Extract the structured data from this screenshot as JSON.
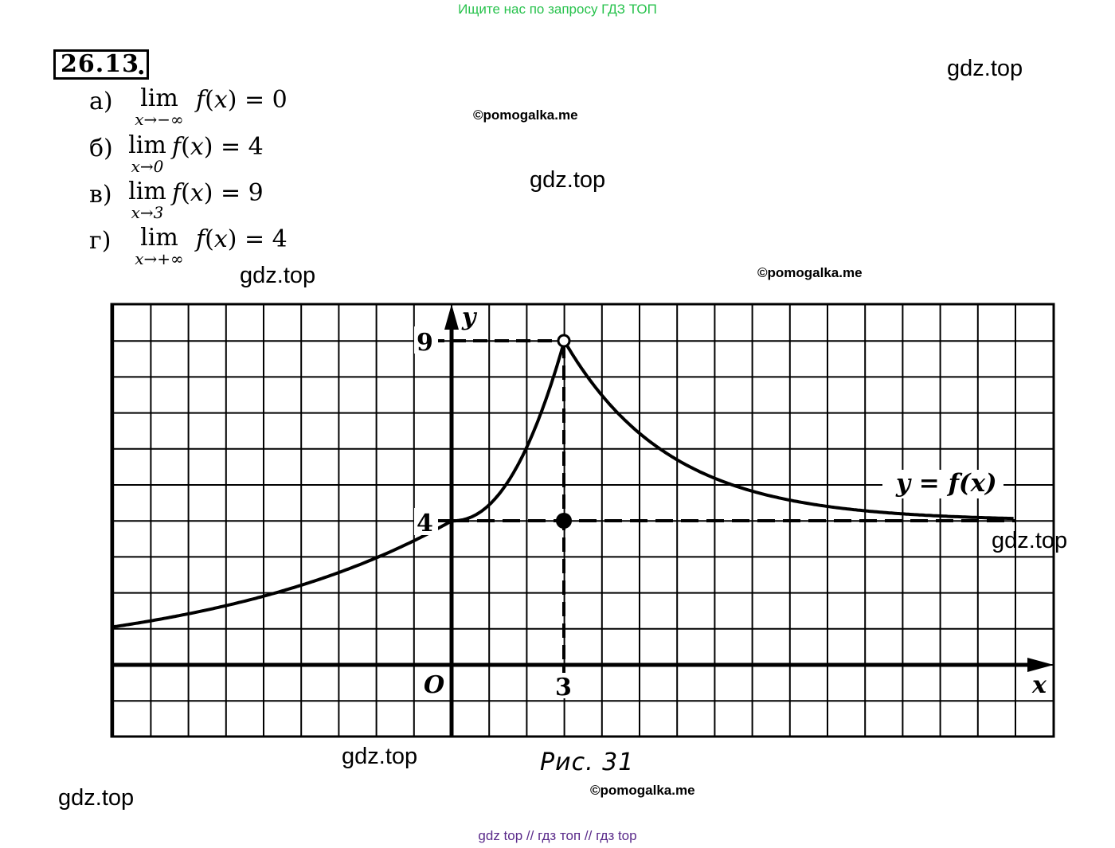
{
  "banner": "Ищите нас по запросу ГДЗ ТОП",
  "problem": {
    "number": "26.13",
    "dot": ".",
    "items": [
      {
        "label": "а)",
        "word": "lim",
        "sub": "x→−∞",
        "fn": "f",
        "arg": "x",
        "rhs": "= 0"
      },
      {
        "label": "б)",
        "word": "lim",
        "sub": "x→0",
        "fn": "f",
        "arg": "x",
        "rhs": "= 4"
      },
      {
        "label": "в)",
        "word": "lim",
        "sub": "x→3",
        "fn": "f",
        "arg": "x",
        "rhs": "= 9"
      },
      {
        "label": "г)",
        "word": "lim",
        "sub": "x→+∞",
        "fn": "f",
        "arg": "x",
        "rhs": "= 4"
      }
    ]
  },
  "watermarks": {
    "gdz_1": "gdz.top",
    "gdz_2": "gdz.top",
    "gdz_3": "gdz.top",
    "gdz_4": "gdz.top",
    "gdz_5": "gdz.top",
    "gdz_6": "gdz.top",
    "copy_1": "©pomogalka.me",
    "copy_2": "©pomogalka.me",
    "copy_3": "©pomogalka.me"
  },
  "figure": {
    "y_axis_label": "y",
    "x_axis_label": "x",
    "origin_label": "O",
    "tick_y_9": "9",
    "tick_y_4": "4",
    "tick_x_3": "3",
    "curve_label": "y = f(x)",
    "open_point": {
      "x": 3,
      "y": 9
    },
    "filled_point": {
      "x": 3,
      "y": 4
    },
    "asymptote_y": 4,
    "caption": "Рис. 31"
  },
  "footer": "gdz top  //  гдз топ  //  гдз top"
}
